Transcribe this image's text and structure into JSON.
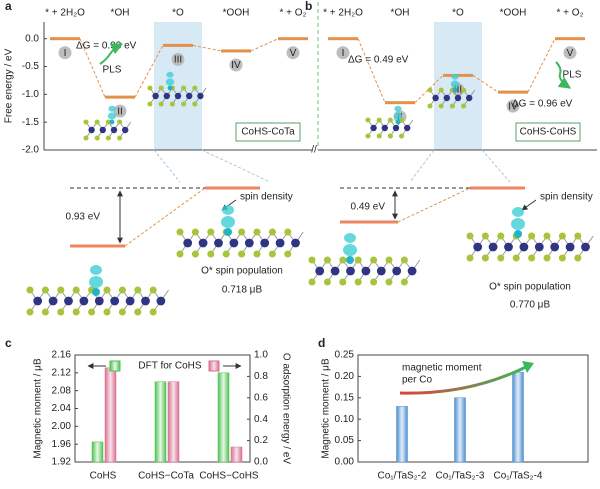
{
  "chart_data": [
    {
      "type": "energy",
      "panel": "a",
      "ylabel": "Free energy / eV",
      "steps": [
        "* + 2H₂O",
        "*OH",
        "*O",
        "*OOH",
        "* + O₂"
      ],
      "stage_labels": [
        "I",
        "II",
        "III",
        "IV",
        "V"
      ],
      "values": [
        0.0,
        -1.05,
        -0.12,
        -0.22,
        0.0
      ],
      "color": "#e3914a",
      "ylim": [
        -2.0,
        0.3
      ],
      "yticks": [
        {
          "value": 0,
          "label": "0.0"
        },
        -0.5,
        {
          "value": -1,
          "label": "-1.0"
        },
        -1.5,
        {
          "value": -2,
          "label": "-2.0"
        }
      ],
      "annotations": {
        "dg": "ΔG = 0.93 eV",
        "pls": "PLS",
        "system": "CoHS-CoTa",
        "gap": "0.93 eV",
        "spin": "spin density",
        "pop_label": "O* spin population",
        "pop": "0.718 μB"
      }
    },
    {
      "type": "energy",
      "panel": "b",
      "steps": [
        "* + 2H₂O",
        "*OH",
        "*O",
        "*OOH",
        "* + O₂"
      ],
      "stage_labels": [
        "I",
        "II",
        "III",
        "IV",
        "V"
      ],
      "values": [
        0.0,
        -1.15,
        -0.66,
        -0.96,
        0.0
      ],
      "color": "#e3914a",
      "ylim": [
        -2.0,
        0.3
      ],
      "annotations": {
        "dg": "ΔG = 0.49 eV",
        "dg2": "ΔG = 0.96 eV",
        "pls": "PLS",
        "system": "CoHS-CoHS",
        "gap": "0.49 eV",
        "spin": "spin density",
        "pop_label": "O* spin population",
        "pop": "0.770 μB"
      }
    },
    {
      "type": "bar",
      "panel": "c",
      "ylabel": "Magnetic moment / μB",
      "y2label": "O adsorption energy / eV",
      "legend_text": "DFT for CoHS",
      "categories": [
        "CoHS",
        "CoHS−CoTa",
        "CoHS−CoHS"
      ],
      "series": [
        {
          "color": "#4fc24f",
          "values": [
            1.965,
            2.1,
            2.12
          ]
        },
        {
          "color": "#d9708f",
          "values": [
            0.88,
            0.75,
            0.14
          ],
          "axis": "y2"
        }
      ],
      "ylim": [
        1.92,
        2.16
      ],
      "yticks": [
        1.92,
        1.96,
        {
          "value": 2,
          "label": "2.00"
        },
        2.04,
        2.08,
        2.12,
        2.16
      ],
      "y2lim": [
        0,
        1.0
      ],
      "y2ticks": [
        {
          "value": 0,
          "label": "0.0"
        },
        0.2,
        0.4,
        0.6,
        0.8,
        {
          "value": 1,
          "label": "1.0"
        }
      ]
    },
    {
      "type": "bar",
      "panel": "d",
      "ylabel": "Magnetic moment / μB",
      "annotation": [
        "magnetic moment",
        "per Co"
      ],
      "categories": [
        "Co₁/TaS₂-2",
        "Co₁/TaS₂-3",
        "Co₁/TaS₂-4"
      ],
      "series": [
        {
          "color": "#4d8fd0",
          "values": [
            0.13,
            0.15,
            0.21
          ]
        }
      ],
      "ylim": [
        0,
        0.25
      ],
      "yticks": [
        {
          "value": 0,
          "label": "0.00"
        },
        0.05,
        {
          "value": 0.1,
          "label": "0.10"
        },
        0.15,
        {
          "value": 0.2,
          "label": "0.20"
        },
        0.25
      ]
    }
  ]
}
